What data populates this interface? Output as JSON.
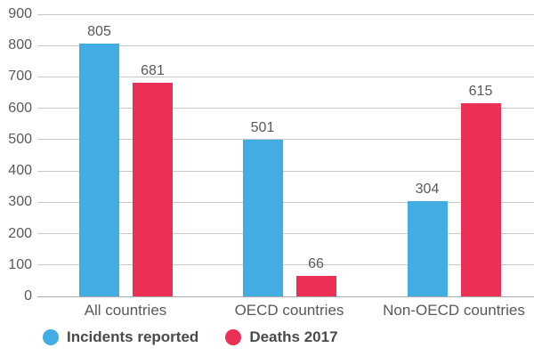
{
  "chart_data": {
    "type": "bar",
    "title": "",
    "xlabel": "",
    "ylabel": "",
    "categories": [
      "All countries",
      "OECD countries",
      "Non-OECD countries"
    ],
    "series": [
      {
        "name": "Incidents reported",
        "color": "#41ADE2",
        "values": [
          805,
          501,
          304
        ]
      },
      {
        "name": "Deaths 2017",
        "color": "#EC2F55",
        "values": [
          681,
          66,
          615
        ]
      }
    ],
    "ylim": [
      0,
      900
    ],
    "ytick_step": 100,
    "grid": true,
    "gridline_color": "#c8c8c8",
    "axis_line_color": "#a8a8a8",
    "text_color": "#595959",
    "legend_position": "bottom"
  }
}
